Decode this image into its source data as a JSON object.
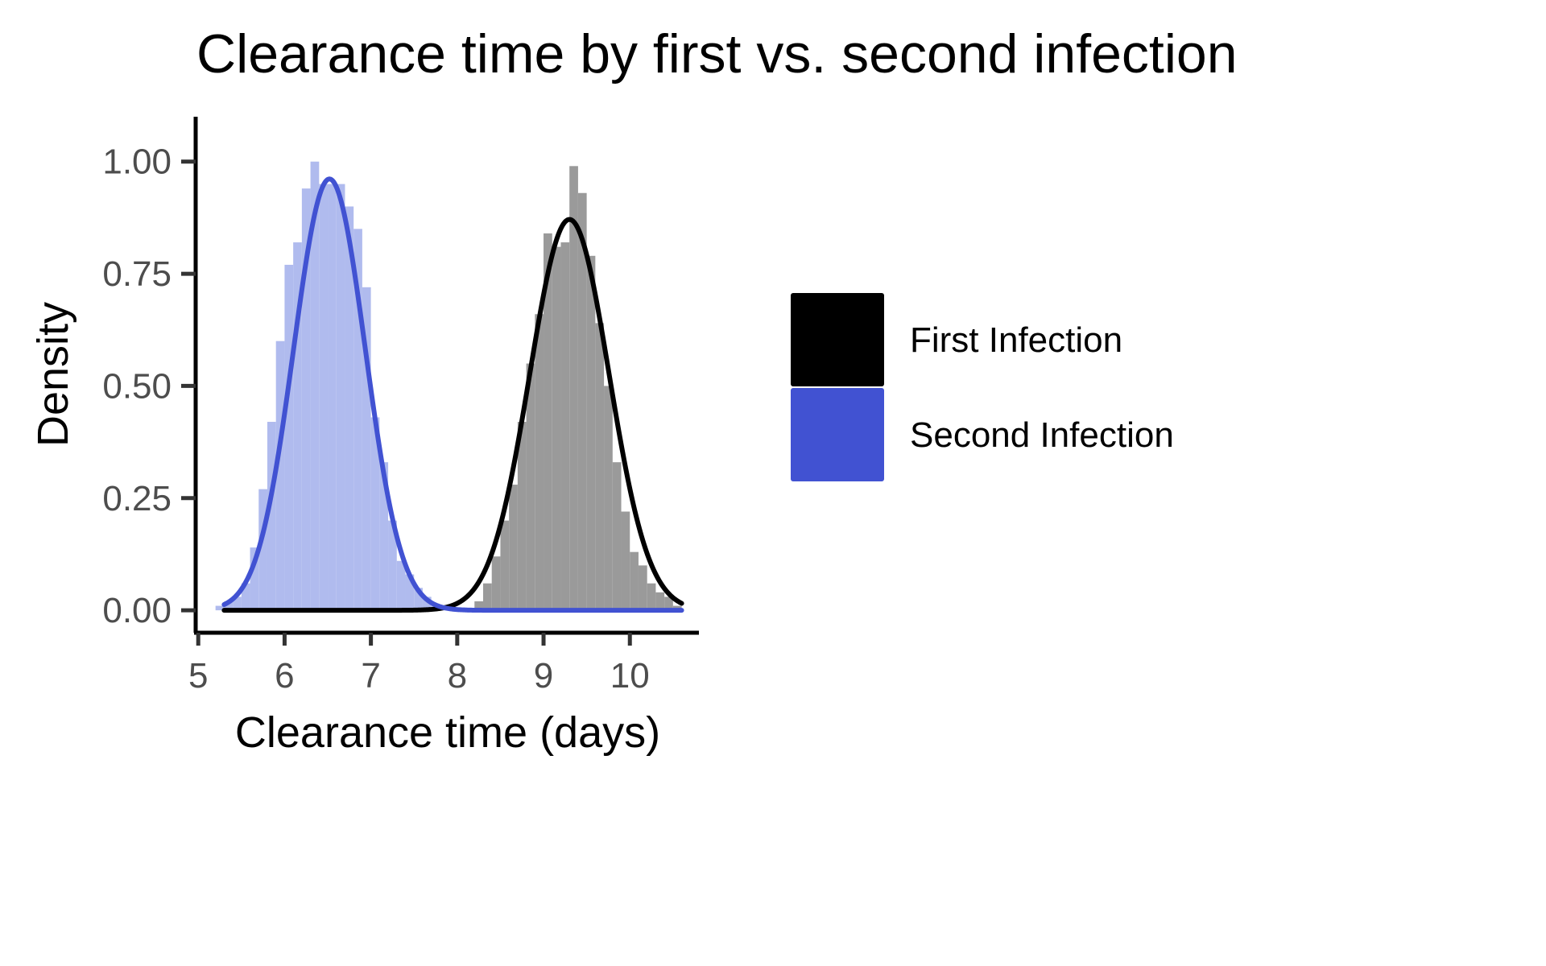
{
  "chart_data": {
    "type": "histogram",
    "title": "Clearance time by first vs. second infection",
    "xlabel": "Clearance time (days)",
    "ylabel": "Density",
    "xlim": [
      4.97,
      10.8
    ],
    "ylim": [
      -0.05,
      1.1
    ],
    "x_ticks": [
      5,
      6,
      7,
      8,
      9,
      10
    ],
    "x_tick_labels": [
      "5",
      "6",
      "7",
      "8",
      "9",
      "10"
    ],
    "y_ticks": [
      0,
      0.25,
      0.5,
      0.75,
      1.0
    ],
    "y_tick_labels": [
      "0.00",
      "0.25",
      "0.50",
      "0.75",
      "1.00"
    ],
    "grid": false,
    "legend_position": "right",
    "bin_width": 0.1,
    "series": [
      {
        "name": "First Infection",
        "bar_color": "#9a9a9a",
        "curve_color": "#000000",
        "legend_color": "#000000",
        "histogram": {
          "bin_starts": [
            8.2,
            8.3,
            8.4,
            8.5,
            8.6,
            8.7,
            8.8,
            8.9,
            9.0,
            9.1,
            9.2,
            9.3,
            9.4,
            9.5,
            9.6,
            9.7,
            9.8,
            9.9,
            10.0,
            10.1,
            10.2,
            10.3,
            10.4,
            10.5
          ],
          "density": [
            0.02,
            0.06,
            0.12,
            0.2,
            0.28,
            0.42,
            0.55,
            0.66,
            0.84,
            0.81,
            0.82,
            0.99,
            0.93,
            0.79,
            0.64,
            0.5,
            0.33,
            0.22,
            0.13,
            0.1,
            0.06,
            0.04,
            0.03,
            0.01
          ]
        },
        "density_curve": {
          "mean": 9.3,
          "sd": 0.458,
          "x_range": [
            5.3,
            10.6
          ]
        }
      },
      {
        "name": "Second Infection",
        "bar_color": "#b0bbee",
        "curve_color": "#4152d2",
        "legend_color": "#4152d2",
        "histogram": {
          "bin_starts": [
            5.2,
            5.3,
            5.4,
            5.5,
            5.6,
            5.7,
            5.8,
            5.9,
            6.0,
            6.1,
            6.2,
            6.3,
            6.4,
            6.5,
            6.6,
            6.7,
            6.8,
            6.9,
            7.0,
            7.1,
            7.2,
            7.3,
            7.4,
            7.5,
            7.6,
            7.7,
            7.8
          ],
          "density": [
            0.01,
            0.02,
            0.03,
            0.06,
            0.14,
            0.27,
            0.42,
            0.6,
            0.77,
            0.82,
            0.94,
            1.0,
            0.95,
            0.95,
            0.95,
            0.9,
            0.85,
            0.72,
            0.43,
            0.33,
            0.2,
            0.11,
            0.08,
            0.05,
            0.03,
            0.01,
            0.01
          ]
        },
        "density_curve": {
          "mean": 6.52,
          "sd": 0.415,
          "x_range": [
            5.3,
            10.6
          ]
        }
      }
    ]
  }
}
